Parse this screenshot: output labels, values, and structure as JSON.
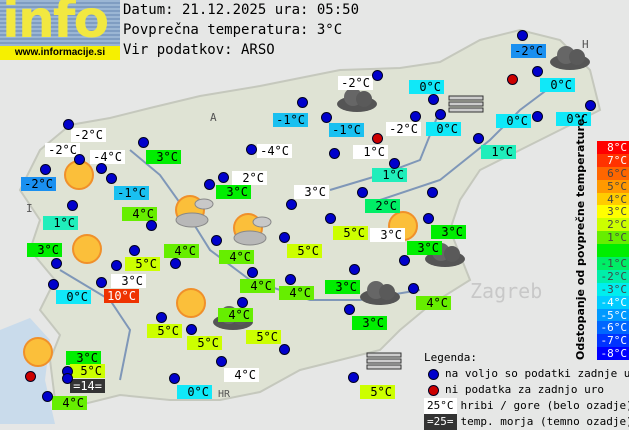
{
  "logo": {
    "text": "info",
    "url": "www.informacije.si"
  },
  "header": {
    "date_line": "Datum: 21.12.2025 ura: 05:50",
    "avg_line": "Povprečna temperatura: 3°C",
    "source_line": "Vir podatkov: ARSO"
  },
  "map_labels": {
    "austria": "A",
    "italy": "I",
    "hungary": "H",
    "croatia": "HR",
    "zagreb": "Zagreb"
  },
  "colors": {
    "ok_dot": "#0000cc",
    "missing_dot": "#cc0000",
    "mountain_bg": "#ffffff",
    "sea_bg": "#333333"
  },
  "stations": [
    {
      "t": "-2°C",
      "c": "#ffffff"
    },
    {
      "t": "-2°C",
      "c": "#ffffff"
    },
    {
      "t": "-4°C",
      "c": "#ffffff"
    },
    {
      "t": "-2°C",
      "c": "#1a90f0"
    },
    {
      "t": "-1°C",
      "c": "#1ac0f0"
    },
    {
      "t": "1°C",
      "c": "#20eebb"
    },
    {
      "t": "4°C",
      "c": "#66ee00"
    },
    {
      "t": "3°C",
      "c": "#00ee00"
    },
    {
      "t": "-4°C",
      "c": "#ffffff"
    },
    {
      "t": "2°C",
      "c": "#ffffff"
    },
    {
      "t": "3°C",
      "c": "#00ee00"
    },
    {
      "t": "-1°C",
      "c": "#1ac0f0"
    },
    {
      "t": "-2°C",
      "c": "#1a90f0"
    },
    {
      "t": "0°C",
      "c": "#10e8f8"
    },
    {
      "t": "0°C",
      "c": "#10e8f8"
    },
    {
      "t": "0°C",
      "c": "#10e8f8"
    },
    {
      "t": "-2°C",
      "c": "#ffffff"
    },
    {
      "t": "0°C",
      "c": "#10e8f8"
    },
    {
      "t": "-2°C",
      "c": "#ffffff"
    },
    {
      "t": "0°C",
      "c": "#10e8f8"
    },
    {
      "t": "-1°C",
      "c": "#1ac0f0"
    },
    {
      "t": "1°C",
      "c": "#ffffff"
    },
    {
      "t": "1°C",
      "c": "#20eebb"
    },
    {
      "t": "1°C",
      "c": "#20eebb"
    },
    {
      "t": "2°C",
      "c": "#00ee66"
    },
    {
      "t": "3°C",
      "c": "#ffffff"
    },
    {
      "t": "5°C",
      "c": "#ccff00"
    },
    {
      "t": "3°C",
      "c": "#ffffff"
    },
    {
      "t": "3°C",
      "c": "#00ee00"
    },
    {
      "t": "3°C",
      "c": "#00ee00"
    },
    {
      "t": "3°C",
      "c": "#00ee00"
    },
    {
      "t": "4°C",
      "c": "#66ee00"
    },
    {
      "t": "3°C",
      "c": "#00ee00"
    },
    {
      "t": "3°C",
      "c": "#00ee00"
    },
    {
      "t": "5°C",
      "c": "#ccff00"
    },
    {
      "t": "0°C",
      "c": "#10e8f8"
    },
    {
      "t": "3°C",
      "c": "#ffffff"
    },
    {
      "t": "10°C",
      "c": "#ee3300"
    },
    {
      "t": "4°C",
      "c": "#66ee00"
    },
    {
      "t": "4°C",
      "c": "#66ee00"
    },
    {
      "t": "5°C",
      "c": "#ccff00"
    },
    {
      "t": "4°C",
      "c": "#66ee00"
    },
    {
      "t": "4°C",
      "c": "#66ee00"
    },
    {
      "t": "5°C",
      "c": "#ccff00"
    },
    {
      "t": "5°C",
      "c": "#ccff00"
    },
    {
      "t": "4°C",
      "c": "#66ee00"
    },
    {
      "t": "5°C",
      "c": "#ccff00"
    },
    {
      "t": "3°C",
      "c": "#00ee00"
    },
    {
      "t": "5°C",
      "c": "#ccff00"
    },
    {
      "t": "=14=",
      "c": "#333333"
    },
    {
      "t": "4°C",
      "c": "#66ee00"
    },
    {
      "t": "0°C",
      "c": "#10e8f8"
    },
    {
      "t": "4°C",
      "c": "#ffffff"
    },
    {
      "t": "5°C",
      "c": "#ccff00"
    }
  ],
  "dot_status": [
    "ok",
    "ok",
    "ok",
    "ok",
    "ok",
    "ok",
    "ok",
    "ok",
    "ok",
    "ok",
    "ok",
    "ok",
    "ok",
    "missing",
    "ok",
    "ok",
    "ok",
    "ok",
    "ok",
    "ok",
    "ok",
    "ok",
    "missing",
    "ok",
    "ok",
    "ok",
    "ok",
    "ok",
    "ok",
    "ok",
    "ok",
    "ok",
    "ok",
    "ok",
    "ok",
    "ok",
    "ok",
    "ok",
    "ok",
    "ok",
    "ok",
    "ok",
    "ok",
    "ok",
    "ok",
    "ok",
    "ok",
    "missing",
    "ok",
    "ok",
    "ok",
    "ok",
    "ok",
    "ok",
    "ok",
    "ok"
  ],
  "weather_icons": [
    "sunny",
    "sunny",
    "sunny",
    "sunny",
    "sunny",
    "partly-cloudy",
    "partly-cloudy",
    "cloudy",
    "cloudy",
    "cloudy",
    "cloudy",
    "cloudy",
    "fog",
    "fog"
  ],
  "scale": {
    "title": "Odstopanje od povprečne temperature:",
    "steps": [
      {
        "t": "8°C",
        "c": "#ff0000"
      },
      {
        "t": "7°C",
        "c": "#ff3300"
      },
      {
        "t": "6°C",
        "c": "#ff6600"
      },
      {
        "t": "5°C",
        "c": "#ff9900"
      },
      {
        "t": "4°C",
        "c": "#ffcc00"
      },
      {
        "t": "3°C",
        "c": "#ffff00"
      },
      {
        "t": "2°C",
        "c": "#ccff00"
      },
      {
        "t": "1°C",
        "c": "#66ee00"
      },
      {
        "t": "",
        "c": "#00ee00"
      },
      {
        "t": "-1°C",
        "c": "#00ee66"
      },
      {
        "t": "-2°C",
        "c": "#00eeaa"
      },
      {
        "t": "-3°C",
        "c": "#00eeee"
      },
      {
        "t": "-4°C",
        "c": "#00ccff"
      },
      {
        "t": "-5°C",
        "c": "#0099ff"
      },
      {
        "t": "-6°C",
        "c": "#0066ff"
      },
      {
        "t": "-7°C",
        "c": "#0033ff"
      },
      {
        "t": "-8°C",
        "c": "#0000ff"
      }
    ]
  },
  "legend": {
    "title": "Legenda:",
    "ok": "na voljo so podatki zadnje ure",
    "missing": "ni podatka za zadnjo uro",
    "mountain_sample": "25°C",
    "mountain": "hribi / gore (belo ozadje)",
    "sea_sample": "=25=",
    "sea": "temp. morja (temno ozadje)"
  }
}
